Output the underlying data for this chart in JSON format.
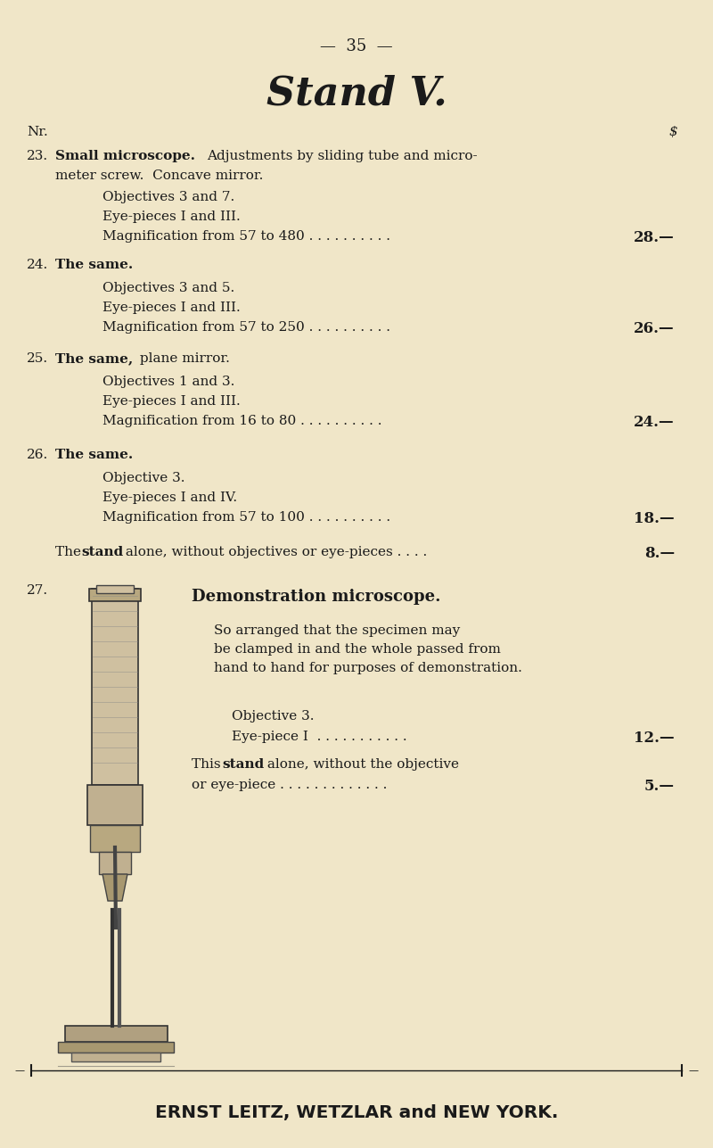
{
  "bg_color": "#f0e6c8",
  "page_number": "35",
  "title": "Stand V.",
  "col_nr": "Nr.",
  "col_s": "$",
  "text_color": "#1a1a1a",
  "footer_text": "ERNST LEITZ, WETZLAR and NEW YORK."
}
